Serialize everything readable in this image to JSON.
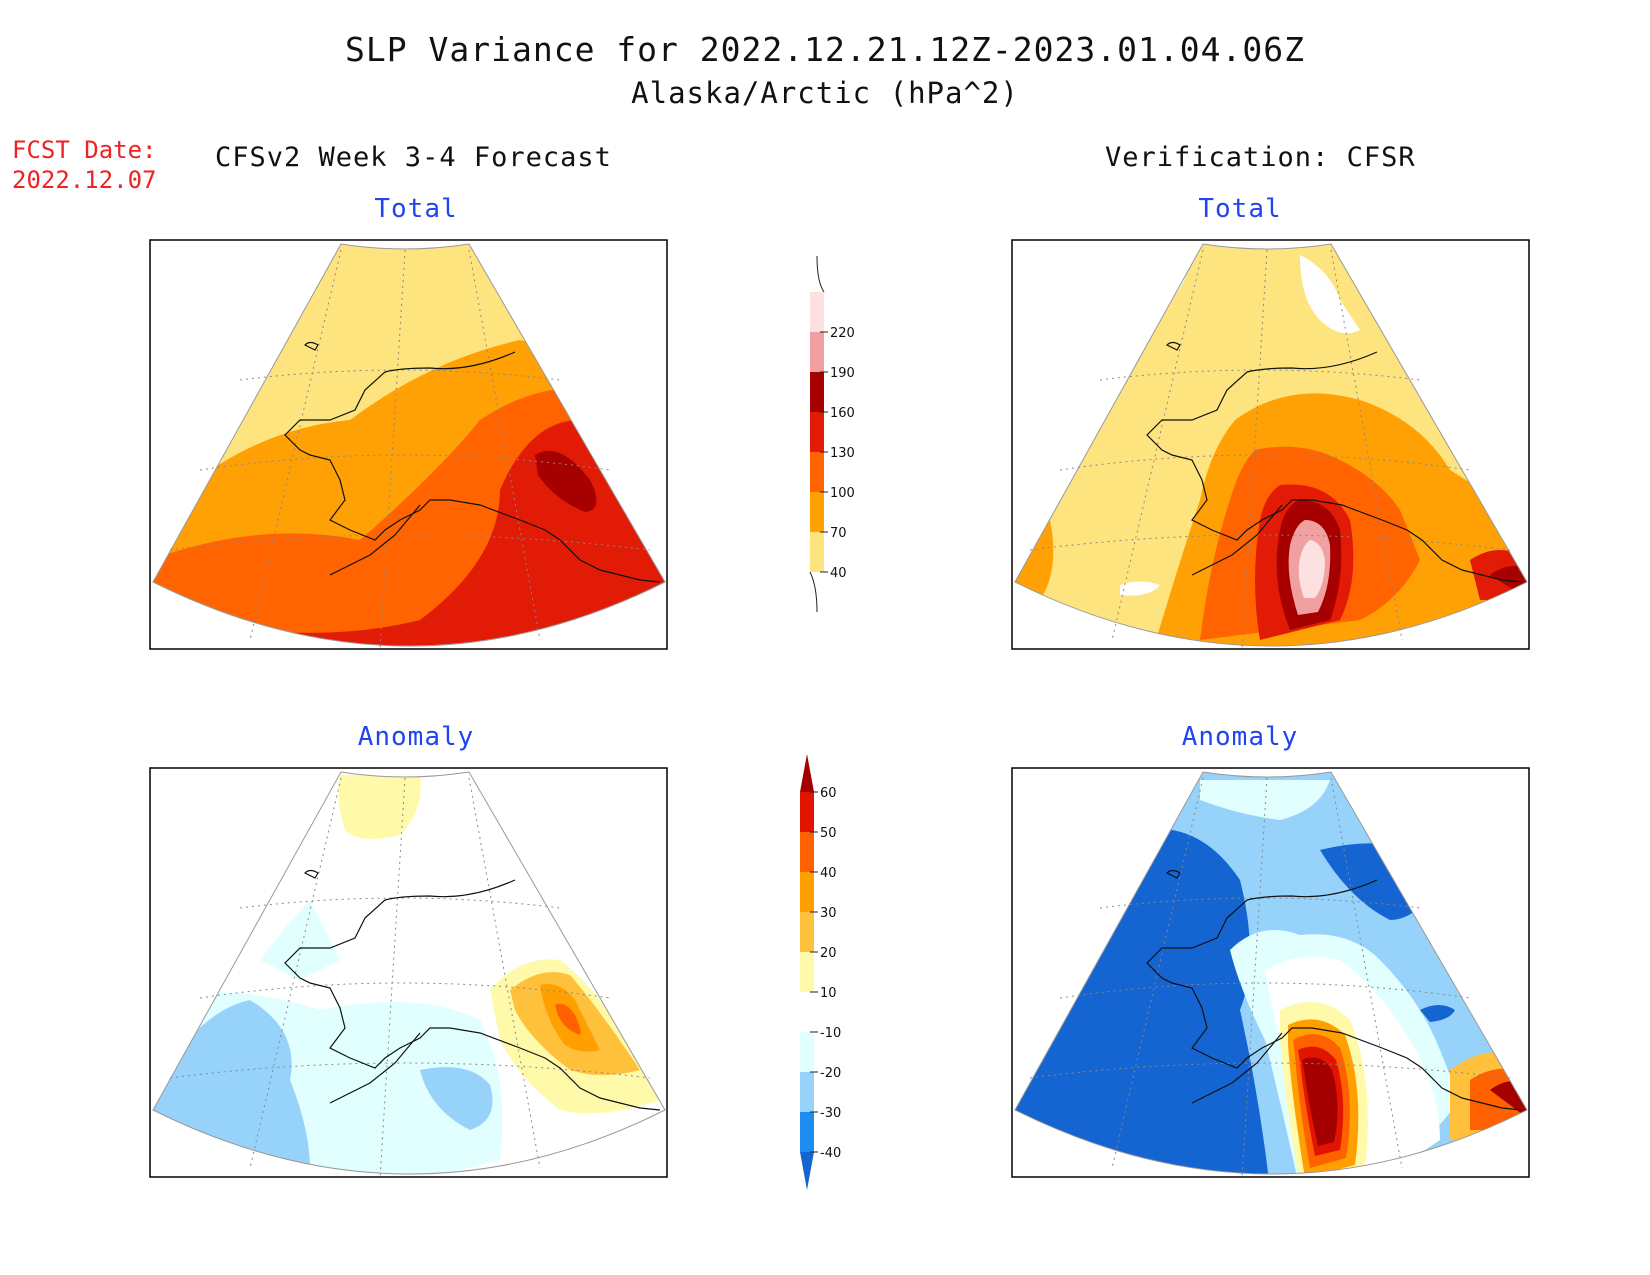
{
  "header": {
    "title": "SLP Variance for 2022.12.21.12Z-2023.01.04.06Z",
    "subtitle": "Alaska/Arctic (hPa^2)",
    "fcst_date_label": "FCST Date:",
    "fcst_date_value": "2022.12.07",
    "left_column": "CFSv2 Week 3-4 Forecast",
    "right_column": "Verification: CFSR"
  },
  "panels": {
    "top_left": "Total",
    "top_right": "Total",
    "bottom_left": "Anomaly",
    "bottom_right": "Anomaly"
  },
  "colorbars": {
    "total": {
      "labels": [
        "40",
        "70",
        "100",
        "130",
        "160",
        "190",
        "220"
      ],
      "colors": [
        "#fde47f",
        "#ffa105",
        "#ff6400",
        "#e11b06",
        "#a60000",
        "#f0a0a0",
        "#fde0e0"
      ]
    },
    "anomaly": {
      "labels": [
        "-40",
        "-30",
        "-20",
        "-10",
        "10",
        "20",
        "30",
        "40",
        "50",
        "60"
      ],
      "colors": [
        "#1464d2",
        "#1e8cf0",
        "#96d2fa",
        "#e1ffff",
        "#ffffff",
        "#fffaaa",
        "#ffc03c",
        "#ffa000",
        "#ff6000",
        "#e11400",
        "#a50000"
      ]
    }
  }
}
